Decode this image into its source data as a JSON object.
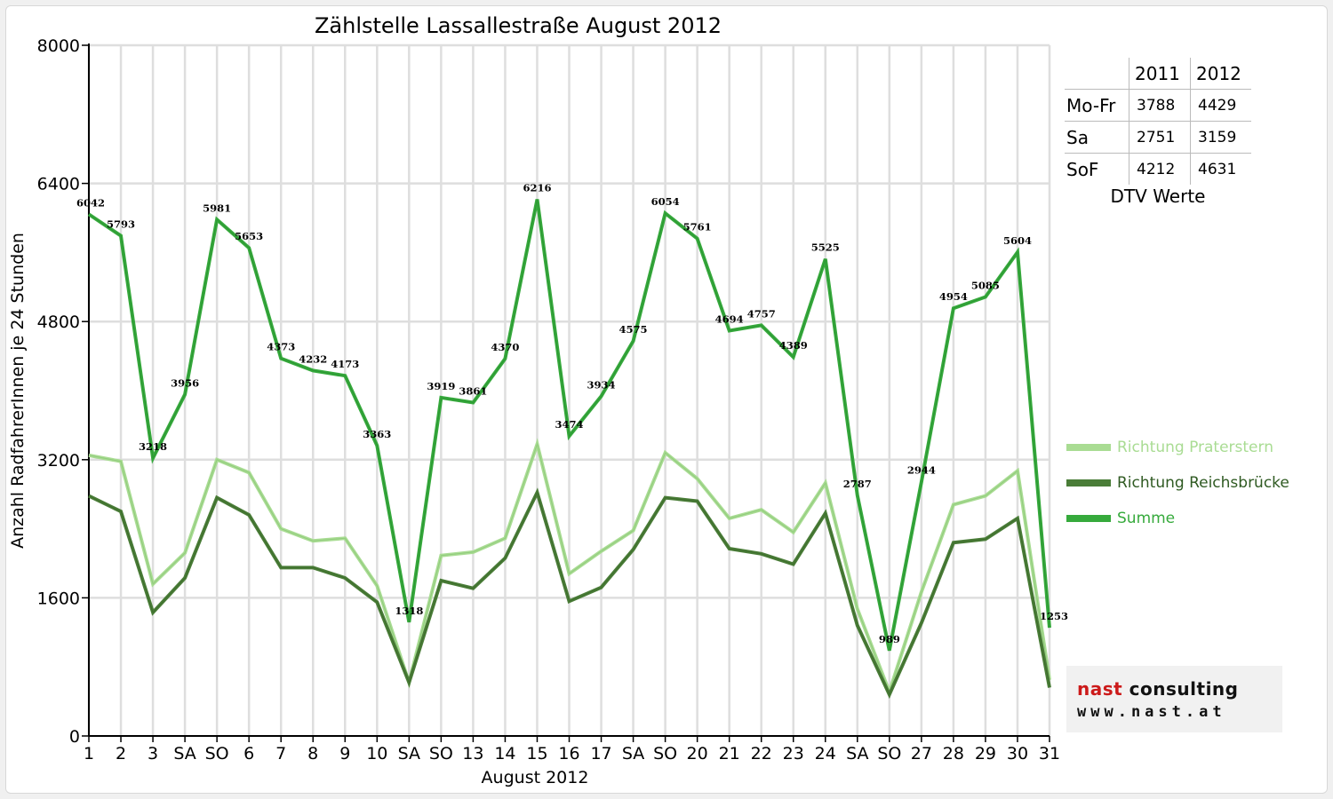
{
  "colors": {
    "praterstern": "#a9dc93",
    "reichsbruecke": "#4a7d38",
    "summe": "#36aa3c",
    "sunday_label": "#ff0000",
    "logo_red": "#cc1a1a"
  },
  "chart_data": {
    "type": "line",
    "title": "Zählstelle Lassallestraße August 2012",
    "xlabel": "August 2012",
    "ylabel": "Anzahl RadfahrerInnen je 24 Stunden",
    "ylim": [
      0,
      8000
    ],
    "yticks": [
      0,
      1600,
      3200,
      4800,
      6400,
      8000
    ],
    "grid": true,
    "legend_position": "right",
    "categories": [
      "1",
      "2",
      "3",
      "SA",
      "SO",
      "6",
      "7",
      "8",
      "9",
      "10",
      "SA",
      "SO",
      "13",
      "14",
      "15",
      "16",
      "17",
      "SA",
      "SO",
      "20",
      "21",
      "22",
      "23",
      "24",
      "SA",
      "SO",
      "27",
      "28",
      "29",
      "30",
      "31"
    ],
    "red_categories": [
      4,
      11,
      14,
      18,
      25
    ],
    "series": [
      {
        "name": "Richtung Praterstern",
        "values": [
          3250,
          3180,
          1760,
          2120,
          3200,
          3050,
          2400,
          2260,
          2290,
          1740,
          620,
          2090,
          2130,
          2290,
          3380,
          1880,
          2140,
          2380,
          3280,
          2980,
          2520,
          2620,
          2360,
          2930,
          1470,
          510,
          1670,
          2680,
          2780,
          3070,
          650
        ]
      },
      {
        "name": "Richtung Reichsbrücke",
        "values": [
          2780,
          2600,
          1430,
          1830,
          2760,
          2560,
          1950,
          1950,
          1830,
          1550,
          620,
          1800,
          1710,
          2060,
          2820,
          1560,
          1720,
          2160,
          2760,
          2720,
          2170,
          2110,
          1990,
          2580,
          1280,
          480,
          1310,
          2240,
          2280,
          2520,
          560
        ]
      },
      {
        "name": "Summe",
        "values": [
          6042,
          5793,
          3218,
          3956,
          5981,
          5653,
          4373,
          4232,
          4173,
          3363,
          1318,
          3919,
          3861,
          4370,
          6216,
          3474,
          3934,
          4575,
          6054,
          5761,
          4694,
          4757,
          4389,
          5525,
          2787,
          989,
          2944,
          4954,
          5085,
          5604,
          1253
        ]
      }
    ],
    "data_labels": [
      "6042",
      "5793",
      "3218",
      "3956",
      "5981",
      "5653",
      "4373",
      "4232",
      "4173",
      "3363",
      "1318",
      "3919",
      "3861",
      "4370",
      "6216",
      "3474",
      "3934",
      "4575",
      "6054",
      "5761",
      "4694",
      "4757",
      "4389",
      "5525",
      "2787",
      "989",
      "2944",
      "4954",
      "5085",
      "5604",
      "1253"
    ]
  },
  "dtv_table": {
    "headers": [
      "",
      "2011",
      "2012"
    ],
    "rows": [
      {
        "label": "Mo-Fr",
        "v2011": "3788",
        "v2012": "4429"
      },
      {
        "label": "Sa",
        "v2011": "2751",
        "v2012": "3159"
      },
      {
        "label": "SoF",
        "v2011": "4212",
        "v2012": "4631"
      }
    ],
    "caption": "DTV Werte"
  },
  "legend": {
    "items": [
      "Richtung Praterstern",
      "Richtung Reichsbrücke",
      "Summe"
    ]
  },
  "logo": {
    "line1_red": "nast",
    "line1_black": "consulting",
    "line2": "www.nast.at"
  }
}
